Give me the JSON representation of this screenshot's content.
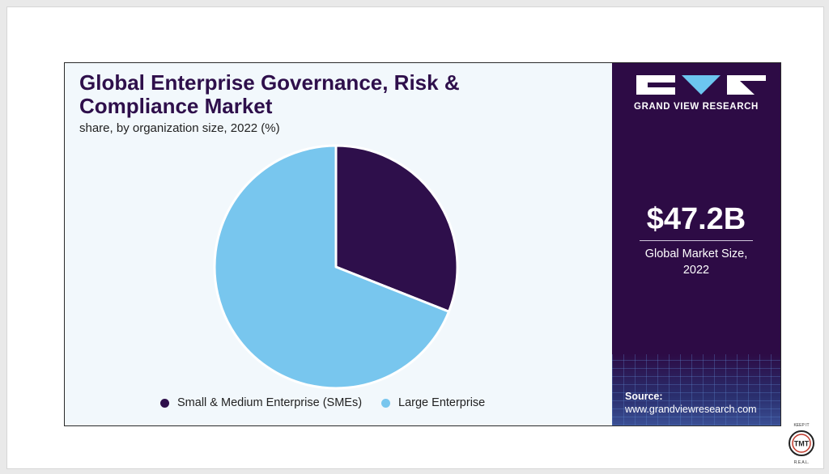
{
  "chart_data": {
    "type": "pie",
    "title": "Global Enterprise Governance, Risk & Compliance Market",
    "subtitle": "share, by organization size, 2022 (%)",
    "categories": [
      "Small & Medium Enterprise (SMEs)",
      "Large Enterprise"
    ],
    "values": [
      31,
      69
    ],
    "legend_position": "bottom",
    "colors": [
      "#2e0f4b",
      "#78c6ee"
    ]
  },
  "title_lines": [
    "Global Enterprise Governance, Risk &",
    "Compliance Market"
  ],
  "sidebar": {
    "brand": "GRAND VIEW RESEARCH",
    "market_value": "$47.2B",
    "market_label_line1": "Global Market Size,",
    "market_label_line2": "2022",
    "source_title": "Source:",
    "source_url": "www.grandviewresearch.com"
  },
  "badge": {
    "top_text": "KEEP IT",
    "center_text": "TMT",
    "bottom_text": "R.E.A.L."
  },
  "colors": {
    "sidebar_bg": "#2d0b45",
    "title": "#2e0f4b",
    "light_blue": "#78c6ee"
  }
}
